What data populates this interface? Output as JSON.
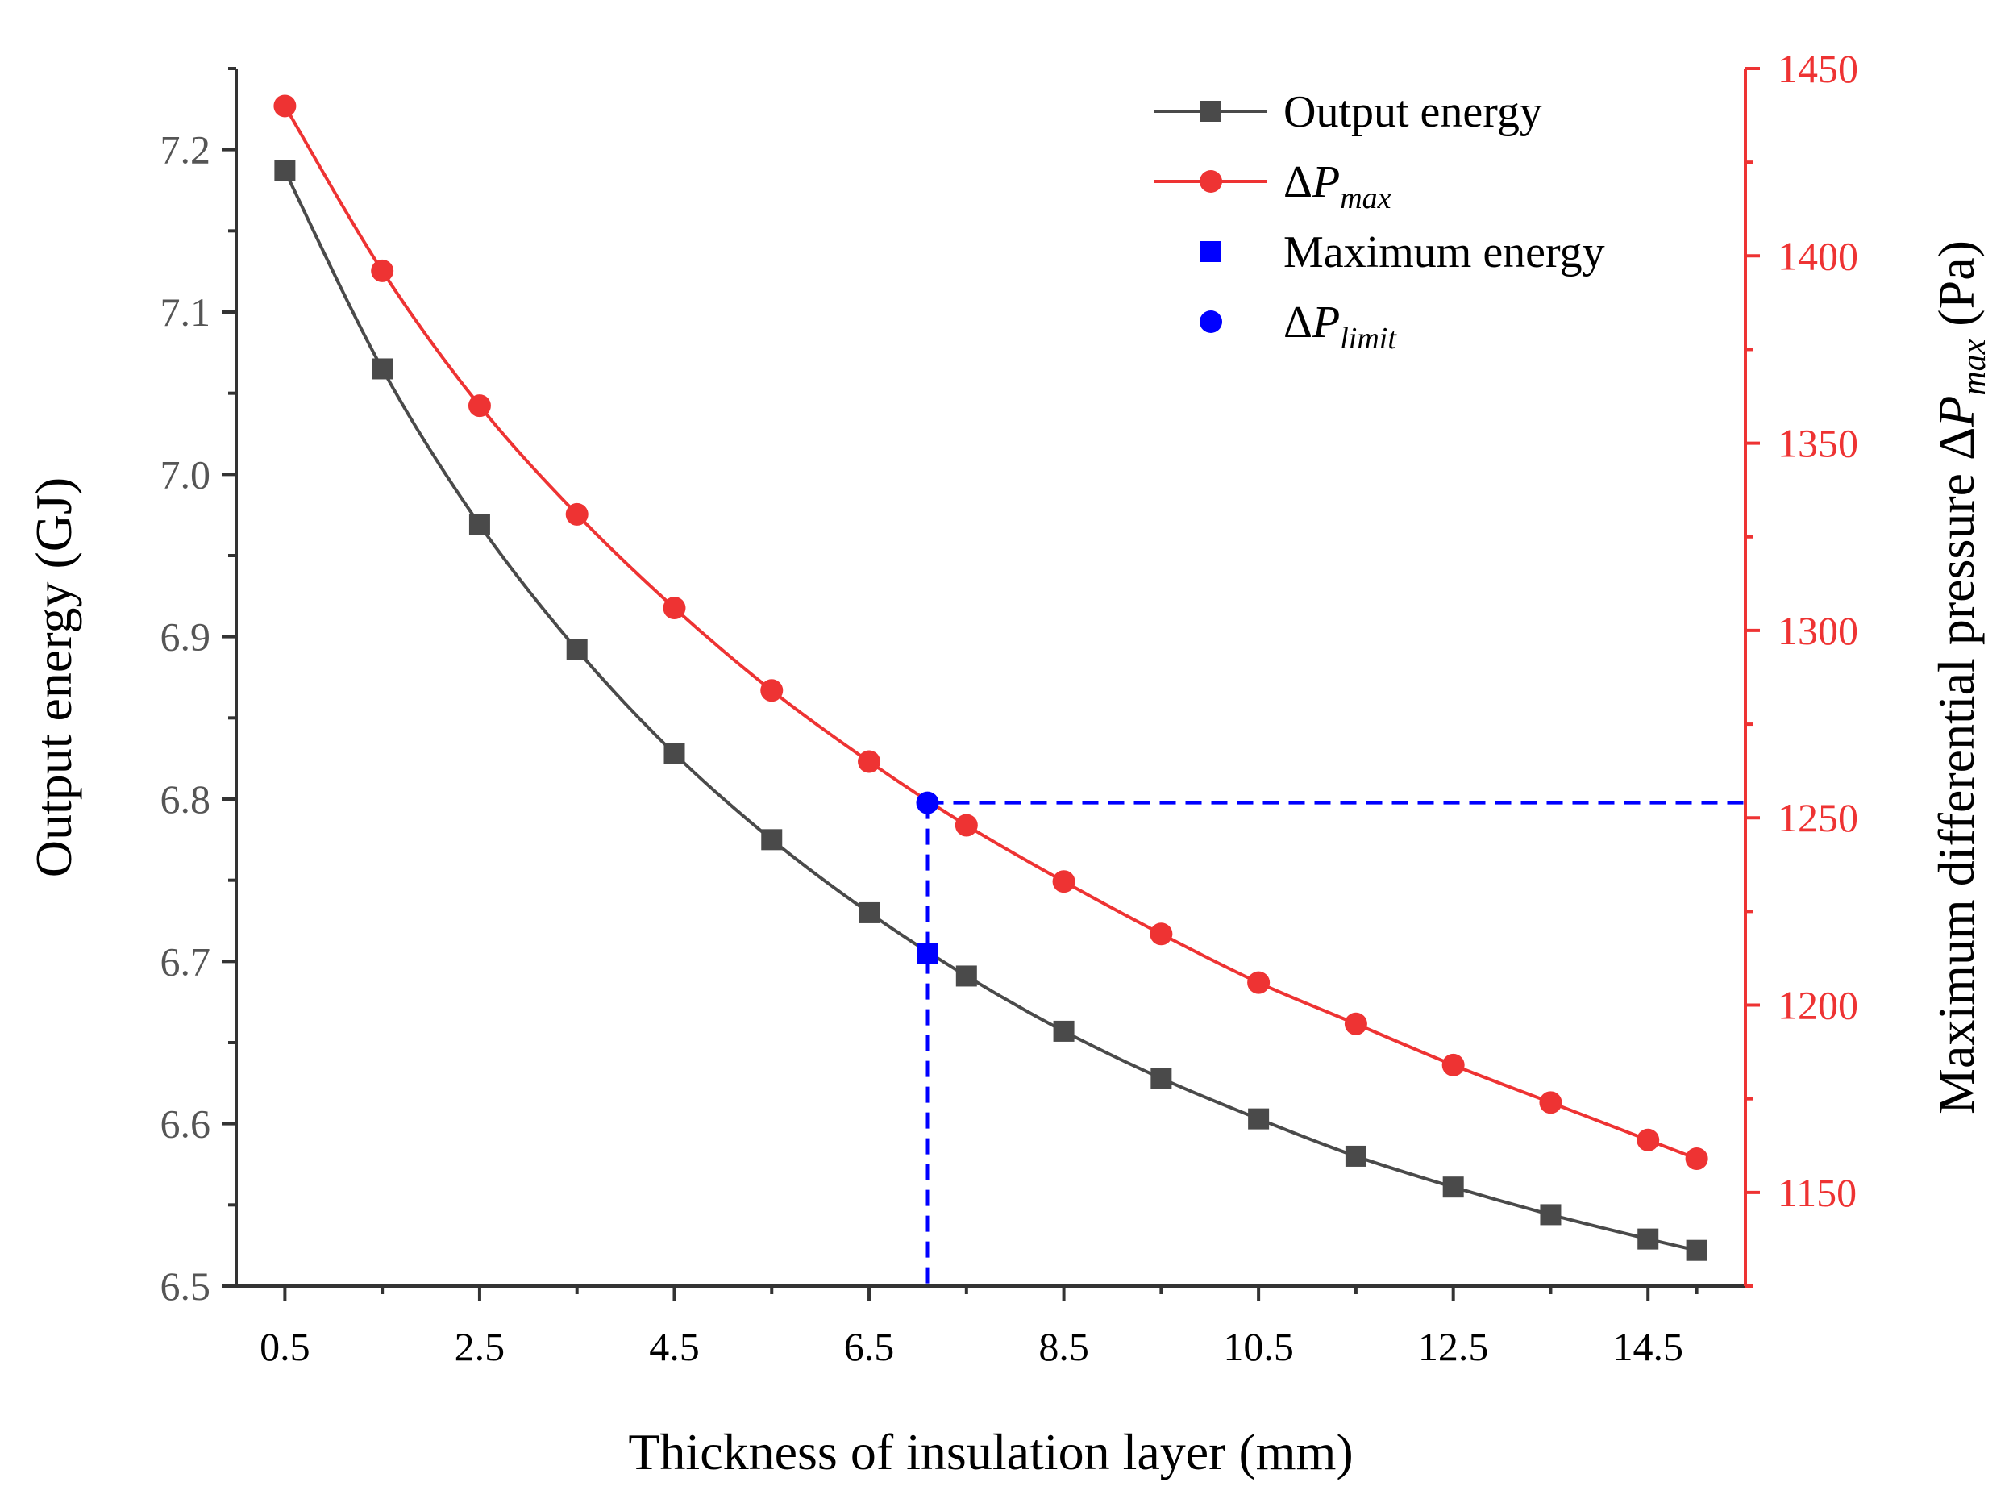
{
  "chart_data": {
    "type": "line",
    "x_axis": {
      "label": "Thickness of insulation layer (mm)",
      "range": [
        0.0,
        15.5
      ],
      "ticks": [
        0.5,
        2.5,
        4.5,
        6.5,
        8.5,
        10.5,
        12.5,
        14.5
      ],
      "tick_labels": [
        "0.5",
        "2.5",
        "4.5",
        "6.5",
        "8.5",
        "10.5",
        "12.5",
        "14.5"
      ],
      "minor_ticks": [
        1.5,
        3.5,
        5.5,
        7.5,
        9.5,
        11.5,
        13.5,
        15.0
      ]
    },
    "y_left": {
      "label": "Output energy (GJ)",
      "range": [
        6.5,
        7.25
      ],
      "ticks": [
        6.5,
        6.6,
        6.7,
        6.8,
        6.9,
        7.0,
        7.1,
        7.2
      ],
      "tick_labels": [
        "6.5",
        "6.6",
        "6.7",
        "6.8",
        "6.9",
        "7.0",
        "7.1",
        "7.2"
      ],
      "color": "#000000"
    },
    "y_right": {
      "label_prefix": "Maximum differential pressure Δ",
      "label_var": "P",
      "label_sub": "max",
      "label_suffix": " (Pa)",
      "range": [
        1125,
        1450
      ],
      "ticks": [
        1150,
        1200,
        1250,
        1300,
        1350,
        1400,
        1450
      ],
      "tick_labels": [
        "1150",
        "1200",
        "1250",
        "1300",
        "1350",
        "1400",
        "1450"
      ],
      "color": "#EE3333"
    },
    "series": [
      {
        "name": "Output energy",
        "axis": "left",
        "color": "#4A4A4A",
        "marker": "square",
        "x": [
          0.5,
          1.5,
          2.5,
          3.5,
          4.5,
          5.5,
          6.5,
          7.5,
          8.5,
          9.5,
          10.5,
          11.5,
          12.5,
          13.5,
          14.5,
          15.0
        ],
        "values": [
          7.187,
          7.065,
          6.969,
          6.892,
          6.828,
          6.775,
          6.73,
          6.691,
          6.657,
          6.628,
          6.603,
          6.58,
          6.561,
          6.544,
          6.529,
          6.522
        ]
      },
      {
        "name": "ΔP",
        "name_sub": "max",
        "axis": "right",
        "color": "#EE3333",
        "marker": "circle",
        "x": [
          0.5,
          1.5,
          2.5,
          3.5,
          4.5,
          5.5,
          6.5,
          7.5,
          8.5,
          9.5,
          10.5,
          11.5,
          12.5,
          13.5,
          14.5,
          15.0
        ],
        "values": [
          1440,
          1396,
          1360,
          1331,
          1306,
          1284,
          1265,
          1248,
          1233,
          1219,
          1206,
          1195,
          1184,
          1174,
          1164,
          1159
        ]
      }
    ],
    "highlights": [
      {
        "name": "Maximum energy",
        "axis": "left",
        "x": 7.1,
        "y": 6.705,
        "color": "#0000FF",
        "marker": "square"
      },
      {
        "name": "ΔP",
        "name_sub": "limit",
        "axis": "right",
        "x": 7.1,
        "y": 1254,
        "color": "#0000FF",
        "marker": "circle"
      }
    ],
    "guide_lines": {
      "x": 7.1,
      "y_right": 1254,
      "color": "#0000FF",
      "style": "dashed"
    },
    "legend": {
      "position": "top-right",
      "entries": [
        {
          "label": "Output energy",
          "sub": ""
        },
        {
          "label": "ΔP",
          "sub": "max"
        },
        {
          "label": "Maximum energy",
          "sub": ""
        },
        {
          "label": "ΔP",
          "sub": "limit"
        }
      ]
    },
    "grid": false
  }
}
